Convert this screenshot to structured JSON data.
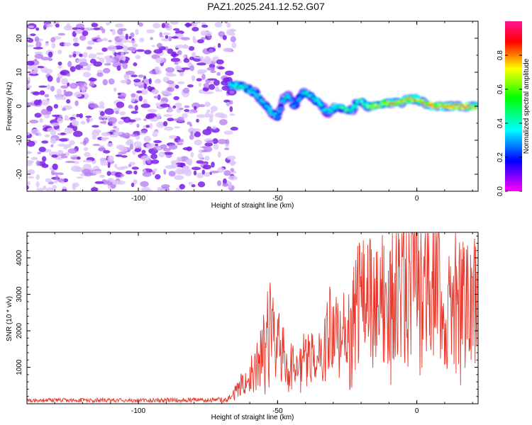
{
  "title": "PAZ1.2025.241.12.52.G07",
  "colorbar": {
    "label": "Normalized spectral amplitude",
    "ticks": [
      "0.0",
      "0.2",
      "0.4",
      "0.6",
      "0.8"
    ],
    "range": [
      0,
      1
    ],
    "colormap": [
      "#ff00ff",
      "#0000ff",
      "#00ffff",
      "#00ff00",
      "#ffff00",
      "#ff0000",
      "#ff1493"
    ]
  },
  "chart_data": [
    {
      "type": "heatmap",
      "panel": "spectrogram",
      "xlabel": "Height of straight line (km)",
      "ylabel": "Frequency (Hz)",
      "xlim": [
        -140,
        22
      ],
      "ylim": [
        -25,
        25
      ],
      "xticks": [
        -100,
        -50,
        0
      ],
      "xtick_labels": [
        "-100",
        "-50",
        "0"
      ],
      "yticks": [
        -20,
        -10,
        0,
        10,
        20
      ],
      "ytick_labels": [
        "-20",
        "-10",
        "0",
        "10",
        "20"
      ],
      "noise_region_x": [
        -140,
        -68
      ],
      "noise_amplitude": 0.08,
      "signal_track": {
        "x": [
          -67,
          -63,
          -58,
          -55,
          -52,
          -50,
          -48,
          -46,
          -44,
          -41,
          -38,
          -35,
          -32,
          -29,
          -26,
          -23,
          -21,
          -18,
          -15,
          -12,
          -9,
          -6,
          -3,
          0,
          3,
          6,
          9,
          12,
          15,
          18,
          21
        ],
        "frequency": [
          6,
          6,
          4,
          1,
          -2,
          -3,
          2,
          3,
          0,
          4,
          3,
          1,
          -2,
          0,
          -1,
          -1,
          2,
          0,
          0,
          1,
          1,
          1,
          2,
          2,
          1,
          0,
          0,
          0,
          0,
          0,
          0
        ],
        "amplitude": [
          0.45,
          0.5,
          0.4,
          0.42,
          0.45,
          0.35,
          0.4,
          0.42,
          0.3,
          0.42,
          0.45,
          0.48,
          0.42,
          0.5,
          0.55,
          0.5,
          0.55,
          0.6,
          0.75,
          0.7,
          0.8,
          0.82,
          0.85,
          0.8,
          0.9,
          0.95,
          0.85,
          0.9,
          0.95,
          0.9,
          0.85
        ]
      }
    },
    {
      "type": "line",
      "panel": "snr",
      "xlabel": "Height of straight line (km)",
      "ylabel": "SNR (10 * v/v)",
      "xlim": [
        -140,
        22
      ],
      "ylim": [
        0,
        4700
      ],
      "xticks": [
        -100,
        -50,
        0
      ],
      "xtick_labels": [
        "-100",
        "-50",
        "0"
      ],
      "yticks": [
        1000,
        2000,
        3000,
        4000
      ],
      "ytick_labels": [
        "1000",
        "2000",
        "3000",
        "4000"
      ],
      "color": "#e8382c",
      "series": [
        {
          "name": "SNR",
          "x": [
            -140,
            -120,
            -100,
            -80,
            -68,
            -62,
            -58,
            -55,
            -52,
            -50,
            -48,
            -45,
            -42,
            -40,
            -37,
            -34,
            -31,
            -28,
            -25,
            -22,
            -19,
            -16,
            -13,
            -10,
            -7,
            -4,
            -1,
            2,
            5,
            8,
            9,
            11,
            14,
            17,
            20,
            22
          ],
          "y": [
            120,
            130,
            125,
            135,
            150,
            600,
            900,
            1500,
            2200,
            1900,
            1400,
            1100,
            900,
            1300,
            1200,
            1500,
            2000,
            1700,
            2200,
            2500,
            3000,
            2700,
            2900,
            2600,
            3400,
            3100,
            3500,
            3200,
            3900,
            4000,
            1700,
            2700,
            2900,
            2750,
            3000,
            3100
          ]
        }
      ]
    }
  ]
}
